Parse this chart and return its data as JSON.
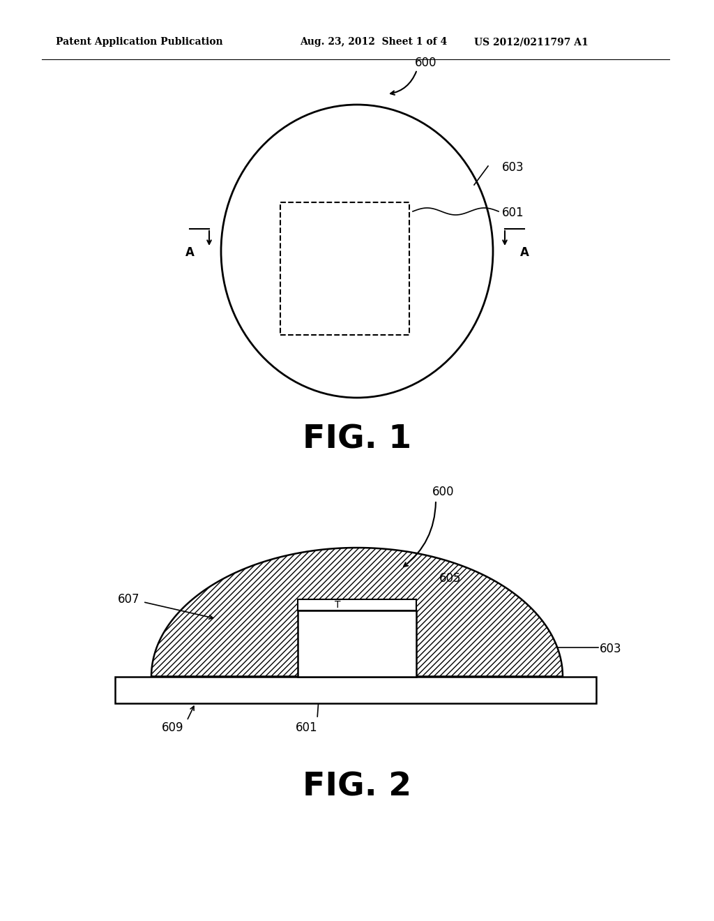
{
  "bg_color": "#ffffff",
  "header_left": "Patent Application Publication",
  "header_mid": "Aug. 23, 2012  Sheet 1 of 4",
  "header_right": "US 2012/0211797 A1",
  "fig1_label": "FIG. 1",
  "fig2_label": "FIG. 2",
  "hatch_pattern": "////"
}
